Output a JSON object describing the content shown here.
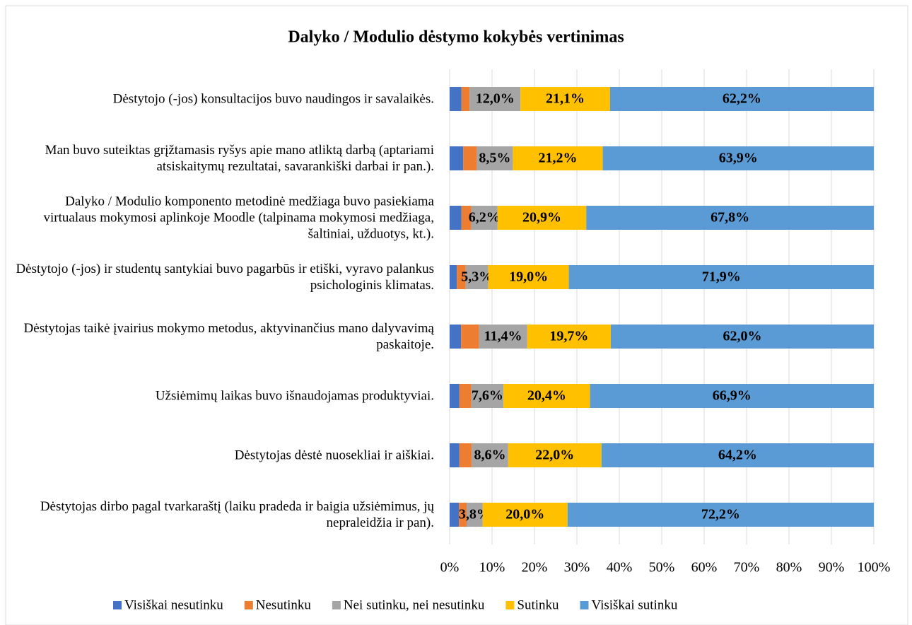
{
  "chart_data": {
    "type": "stacked-barh",
    "title": "Dalyko / Modulio dėstymo kokybės vertinimas",
    "categories": [
      "Dėstytojo (-jos) konsultacijos buvo naudingos ir savalaikės.",
      "Man buvo suteiktas grįžtamasis ryšys apie mano atliktą darbą (aptariami atsiskaitymų rezultatai, savarankiški darbai ir pan.).",
      "Dalyko / Modulio komponento metodinė medžiaga buvo pasiekiama virtualaus mokymosi aplinkoje Moodle (talpinama mokymosi medžiaga, šaltiniai, užduotys, kt.).",
      "Dėstytojo (-jos) ir studentų santykiai buvo pagarbūs ir etiški, vyravo palankus psichologinis klimatas.",
      "Dėstytojas taikė įvairius mokymo metodus, aktyvinančius mano dalyvavimą paskaitoje.",
      "Užsiėmimų laikas buvo išnaudojamas produktyviai.",
      "Dėstytojas dėstė nuosekliai ir aiškiai.",
      "Dėstytojas dirbo pagal tvarkaraštį (laiku pradeda ir baigia užsiėmimus, jų nepraleidžia ir pan)."
    ],
    "series": [
      {
        "name": "Visiškai nesutinku",
        "color": "#4472c4",
        "values": [
          2.8,
          3.2,
          2.8,
          1.7,
          2.7,
          2.3,
          2.3,
          2.2
        ]
      },
      {
        "name": "Nesutinku",
        "color": "#ed7d31",
        "values": [
          1.9,
          3.2,
          2.3,
          2.1,
          4.2,
          2.8,
          2.9,
          1.8
        ]
      },
      {
        "name": "Nei sutinku, nei nesutinku",
        "color": "#a5a5a5",
        "values": [
          12.0,
          8.5,
          6.2,
          5.3,
          11.4,
          7.6,
          8.6,
          3.8
        ],
        "value_labels": [
          "12,0%",
          "8,5%",
          "6,2%",
          "5,3%",
          "11,4%",
          "7,6%",
          "8,6%",
          "3,8%"
        ]
      },
      {
        "name": "Sutinku",
        "color": "#ffc000",
        "values": [
          21.1,
          21.2,
          20.9,
          19.0,
          19.7,
          20.4,
          22.0,
          20.0
        ],
        "value_labels": [
          "21,1%",
          "21,2%",
          "20,9%",
          "19,0%",
          "19,7%",
          "20,4%",
          "22,0%",
          "20,0%"
        ]
      },
      {
        "name": "Visiškai sutinku",
        "color": "#5b9bd5",
        "values": [
          62.2,
          63.9,
          67.8,
          71.9,
          62.0,
          66.9,
          64.2,
          72.2
        ],
        "value_labels": [
          "62,2%",
          "63,9%",
          "67,8%",
          "71,9%",
          "62,0%",
          "66,9%",
          "64,2%",
          "72,2%"
        ]
      }
    ],
    "xlim": [
      0,
      100
    ],
    "xticks": [
      {
        "value": 0,
        "label": "0%"
      },
      {
        "value": 10,
        "label": "10%"
      },
      {
        "value": 20,
        "label": "20%"
      },
      {
        "value": 30,
        "label": "30%"
      },
      {
        "value": 40,
        "label": "40%"
      },
      {
        "value": 50,
        "label": "50%"
      },
      {
        "value": 60,
        "label": "60%"
      },
      {
        "value": 70,
        "label": "70%"
      },
      {
        "value": 80,
        "label": "80%"
      },
      {
        "value": 90,
        "label": "90%"
      },
      {
        "value": 100,
        "label": "100%"
      }
    ],
    "grid": true,
    "legend": "bottom"
  }
}
